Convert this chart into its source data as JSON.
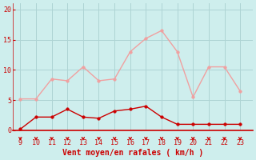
{
  "hours": [
    9,
    10,
    11,
    12,
    13,
    14,
    15,
    16,
    17,
    18,
    19,
    20,
    21,
    22,
    23
  ],
  "rafales": [
    5.2,
    5.2,
    8.5,
    8.2,
    10.5,
    8.2,
    8.5,
    13.0,
    15.2,
    16.5,
    13.0,
    5.5,
    10.5,
    10.5,
    6.5
  ],
  "vent_moyen": [
    0.2,
    2.2,
    2.2,
    3.5,
    2.2,
    2.0,
    3.2,
    3.5,
    4.0,
    2.2,
    1.0,
    1.0,
    1.0,
    1.0,
    1.0
  ],
  "rafales_color": "#f0a0a0",
  "vent_moyen_color": "#cc0000",
  "background_color": "#ceeeed",
  "grid_color": "#aed4d4",
  "spine_color": "#cc0000",
  "tick_color": "#cc0000",
  "xlabel": "Vent moyen/en rafales ( km/h )",
  "xlabel_color": "#cc0000",
  "ylim": [
    0,
    21
  ],
  "yticks": [
    0,
    5,
    10,
    15,
    20
  ],
  "xlim": [
    8.5,
    23.8
  ],
  "line_width": 1.0,
  "marker_size": 2.5
}
